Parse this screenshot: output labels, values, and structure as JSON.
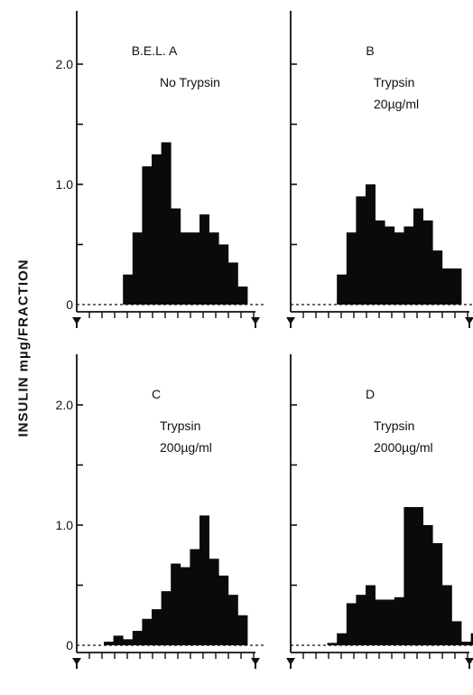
{
  "figure": {
    "ylabel": "INSULIN mµg/FRACTION"
  },
  "chart_data": [
    {
      "type": "bar",
      "panel": "A",
      "title": "B.E.L. A",
      "annotation": [
        "No Trypsin"
      ],
      "ylim": [
        0,
        2.4
      ],
      "yticks": [
        "0",
        "1.0",
        "2.0"
      ],
      "values": [
        0,
        0,
        0.25,
        0.6,
        1.15,
        1.25,
        1.35,
        0.8,
        0.6,
        0.6,
        0.75,
        0.6,
        0.5,
        0.35,
        0.15,
        0,
        0,
        0,
        0,
        0
      ]
    },
    {
      "type": "bar",
      "panel": "B",
      "title": "B",
      "annotation": [
        "Trypsin",
        "20µg/ml"
      ],
      "ylim": [
        0,
        2.4
      ],
      "yticks": [],
      "values": [
        0,
        0,
        0.25,
        0.6,
        0.9,
        1.0,
        0.7,
        0.65,
        0.6,
        0.65,
        0.8,
        0.7,
        0.45,
        0.3,
        0.3,
        0,
        0,
        0,
        0,
        0
      ]
    },
    {
      "type": "bar",
      "panel": "C",
      "title": "C",
      "annotation": [
        "Trypsin",
        "200µg/ml"
      ],
      "ylim": [
        0,
        2.4
      ],
      "yticks": [
        "0",
        "1.0",
        "2.0"
      ],
      "values": [
        0.03,
        0.08,
        0.05,
        0.12,
        0.22,
        0.3,
        0.45,
        0.68,
        0.65,
        0.8,
        1.08,
        0.72,
        0.58,
        0.42,
        0.25,
        0,
        0,
        0,
        0,
        0
      ]
    },
    {
      "type": "bar",
      "panel": "D",
      "title": "D",
      "annotation": [
        "Trypsin",
        "2000µg/ml"
      ],
      "ylim": [
        0,
        2.4
      ],
      "yticks": [],
      "values": [
        0,
        0.02,
        0.1,
        0.35,
        0.42,
        0.5,
        0.38,
        0.38,
        0.4,
        1.15,
        1.15,
        1.0,
        0.85,
        0.5,
        0.2,
        0.03,
        0.1,
        0,
        0,
        0
      ]
    }
  ]
}
